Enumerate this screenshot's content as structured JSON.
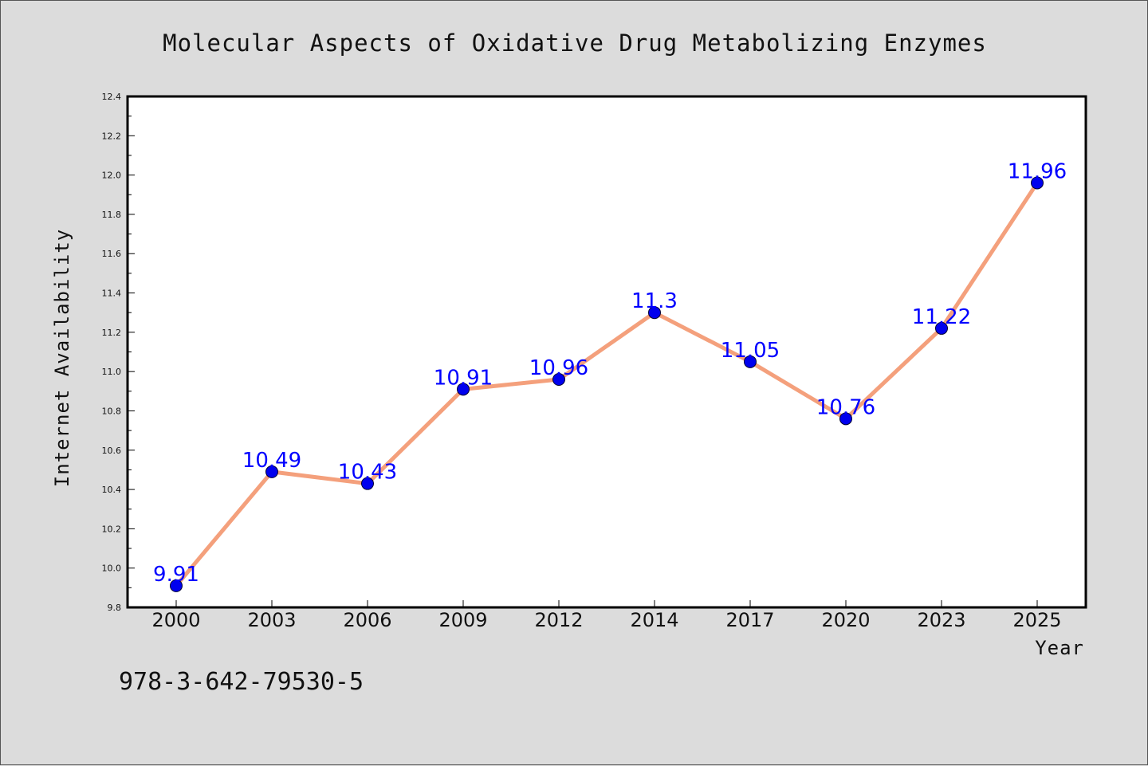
{
  "chart_data": {
    "type": "line",
    "title": "Molecular Aspects of Oxidative Drug Metabolizing Enzymes",
    "xlabel": "Year",
    "ylabel": "Internet Availability",
    "categories": [
      "2000",
      "2003",
      "2006",
      "2009",
      "2012",
      "2014",
      "2017",
      "2020",
      "2023",
      "2025"
    ],
    "series": [
      {
        "values": [
          9.91,
          10.49,
          10.43,
          10.91,
          10.96,
          11.3,
          11.05,
          10.76,
          11.22,
          11.96
        ],
        "labels": [
          "9.91",
          "10.49",
          "10.43",
          "10.91",
          "10.96",
          "11.3",
          "11.05",
          "10.76",
          "11.22",
          "11.96"
        ],
        "line_color": "#f4a07c",
        "marker_color": "#0000ee",
        "label_color": "#0000ff"
      }
    ],
    "ylim": [
      9.8,
      12.4
    ],
    "yticks": [
      "9.8",
      "10.0",
      "10.2",
      "10.4",
      "10.6",
      "10.8",
      "11.0",
      "11.2",
      "11.4",
      "11.6",
      "11.8",
      "12.0",
      "12.2",
      "12.4"
    ],
    "grid": false,
    "legend": "none",
    "annotation": "978-3-642-79530-5"
  }
}
